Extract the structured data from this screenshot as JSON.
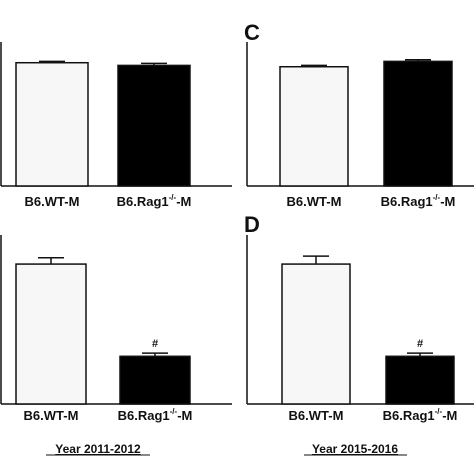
{
  "panels_meta": {
    "labels": [
      "C",
      "D"
    ],
    "footers": [
      "Year 2011-2012",
      "Year 2015-2016"
    ]
  },
  "chart_data": [
    {
      "type": "bar",
      "panel": "",
      "categories": [
        "B6.WT-M",
        "B6.Rag1-/--M"
      ],
      "values": [
        92,
        90
      ],
      "errors": [
        1,
        1.5
      ],
      "colors": [
        "#f7f7f7",
        "#000000"
      ],
      "ylim": [
        0,
        100
      ],
      "annotations": []
    },
    {
      "type": "bar",
      "panel": "C",
      "categories": [
        "B6.WT-M",
        "B6.Rag1-/--M"
      ],
      "values": [
        89,
        93
      ],
      "errors": [
        1,
        1.2
      ],
      "colors": [
        "#f7f7f7",
        "#000000"
      ],
      "ylim": [
        0,
        100
      ],
      "annotations": []
    },
    {
      "type": "bar",
      "panel": "",
      "categories": [
        "B6.WT-M",
        "B6.Rag1-/--M"
      ],
      "values": [
        88,
        30
      ],
      "errors": [
        4,
        2
      ],
      "colors": [
        "#f7f7f7",
        "#000000"
      ],
      "ylim": [
        0,
        100
      ],
      "annotations": [
        {
          "category": "B6.Rag1-/--M",
          "text": "#"
        }
      ]
    },
    {
      "type": "bar",
      "panel": "D",
      "categories": [
        "B6.WT-M",
        "B6.Rag1-/--M"
      ],
      "values": [
        88,
        30
      ],
      "errors": [
        5,
        2
      ],
      "colors": [
        "#f7f7f7",
        "#000000"
      ],
      "ylim": [
        0,
        100
      ],
      "annotations": [
        {
          "category": "B6.Rag1-/--M",
          "text": "#"
        }
      ]
    }
  ]
}
